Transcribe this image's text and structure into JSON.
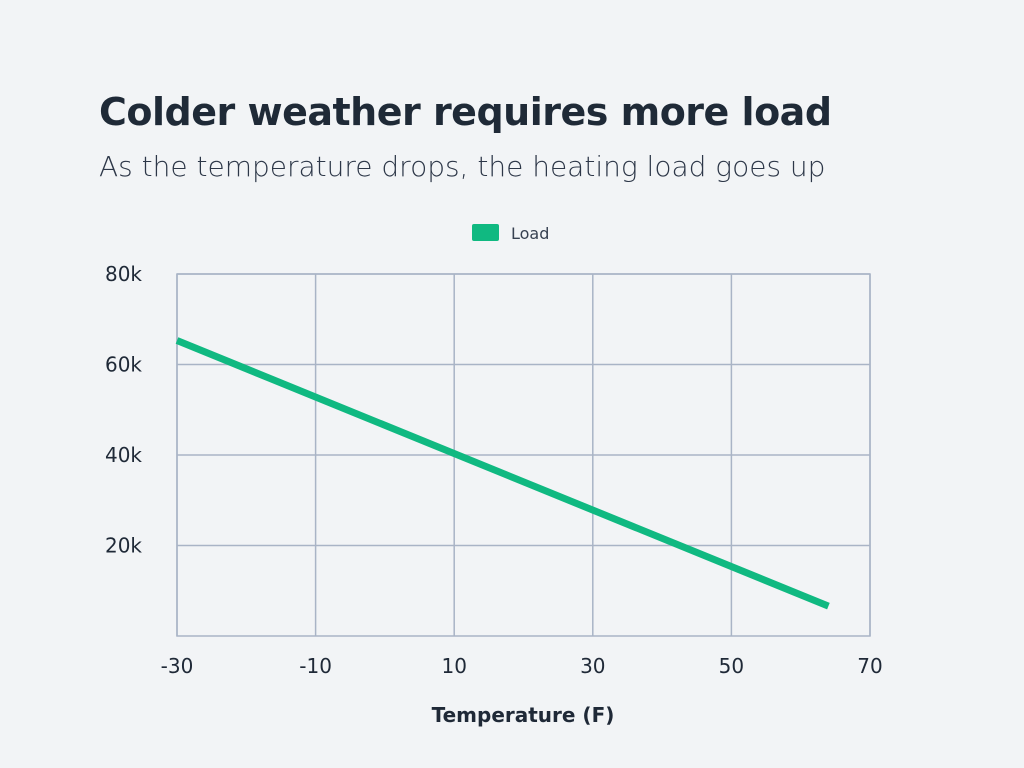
{
  "title": "Colder weather requires more load",
  "subtitle": "As the temperature drops, the heating load goes up",
  "chart_data": {
    "type": "line",
    "title": "Colder weather requires more load",
    "subtitle": "As the temperature drops, the heating load goes up",
    "xlabel": "Temperature (F)",
    "ylabel": "",
    "xlim": [
      -30,
      70
    ],
    "ylim": [
      0,
      80000
    ],
    "xticks": [
      -30,
      -10,
      10,
      30,
      50,
      70
    ],
    "xtick_labels": [
      "-30",
      "-10",
      "10",
      "30",
      "50",
      "70"
    ],
    "yticks": [
      20000,
      40000,
      60000,
      80000
    ],
    "ytick_labels": [
      "20k",
      "40k",
      "60k",
      "80k"
    ],
    "grid": true,
    "legend_position": "top-center",
    "series": [
      {
        "name": "Load",
        "color": "#10b981",
        "x": [
          -30,
          64
        ],
        "y": [
          65300,
          6600
        ]
      }
    ]
  }
}
